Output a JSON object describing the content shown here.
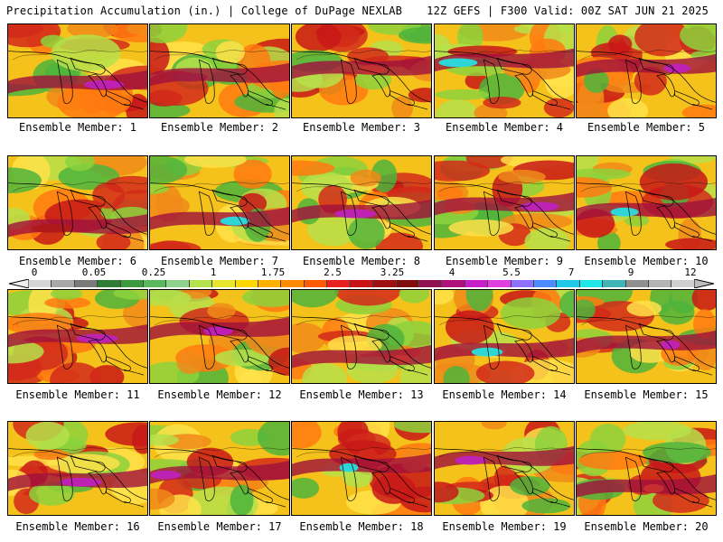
{
  "header": {
    "title_left": "Precipitation Accumulation (in.) | College of DuPage NEXLAB",
    "title_right": "12Z GEFS | F300 Valid: 00Z SAT JUN 21 2025"
  },
  "panels": [
    {
      "caption": "Ensemble Member: 1",
      "accent": "#c020c0"
    },
    {
      "caption": "Ensemble Member: 2",
      "accent": "#a02040"
    },
    {
      "caption": "Ensemble Member: 3",
      "accent": "#c83232"
    },
    {
      "caption": "Ensemble Member: 4",
      "accent": "#20e8e8"
    },
    {
      "caption": "Ensemble Member: 5",
      "accent": "#c020c0"
    },
    {
      "caption": "Ensemble Member: 6",
      "accent": "#b01a1a"
    },
    {
      "caption": "Ensemble Member: 7",
      "accent": "#20e8e8"
    },
    {
      "caption": "Ensemble Member: 8",
      "accent": "#c020c0"
    },
    {
      "caption": "Ensemble Member: 9",
      "accent": "#c020c0"
    },
    {
      "caption": "Ensemble Member: 10",
      "accent": "#20e8e8"
    },
    {
      "caption": "Ensemble Member: 11",
      "accent": "#c020c0"
    },
    {
      "caption": "Ensemble Member: 12",
      "accent": "#c020c0"
    },
    {
      "caption": "Ensemble Member: 13",
      "accent": "#c83232"
    },
    {
      "caption": "Ensemble Member: 14",
      "accent": "#20e8e8"
    },
    {
      "caption": "Ensemble Member: 15",
      "accent": "#c020c0"
    },
    {
      "caption": "Ensemble Member: 16",
      "accent": "#c020c0"
    },
    {
      "caption": "Ensemble Member: 17",
      "accent": "#c020c0"
    },
    {
      "caption": "Ensemble Member: 18",
      "accent": "#20e8e8"
    },
    {
      "caption": "Ensemble Member: 19",
      "accent": "#c020c0"
    },
    {
      "caption": "Ensemble Member: 20",
      "accent": "#c83232"
    }
  ],
  "colorbar": {
    "labels": [
      "0",
      "0.05",
      "0.25",
      "1",
      "1.75",
      "2.5",
      "3.25",
      "4",
      "5.5",
      "7",
      "9",
      "12"
    ],
    "colors": [
      "#d6d6d6",
      "#a8a8a8",
      "#7a7a7a",
      "#2e7d32",
      "#3c9a3c",
      "#5cb85c",
      "#8cd28c",
      "#b4e24a",
      "#e6e62a",
      "#ffd700",
      "#ffb000",
      "#ff8c00",
      "#ff5a00",
      "#e82020",
      "#c81414",
      "#a01010",
      "#800c0c",
      "#901050",
      "#b0107a",
      "#c820c8",
      "#e040e0",
      "#9070ff",
      "#4a8cff",
      "#20c8e8",
      "#20e8e8",
      "#40b4b4",
      "#909090",
      "#b4b4b4",
      "#cfcfcf"
    ]
  }
}
